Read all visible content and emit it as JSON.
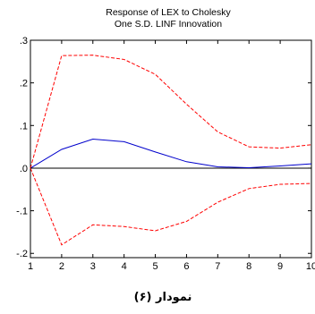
{
  "chart_data": {
    "type": "line",
    "title": "Response of LEX to Cholesky",
    "subtitle": "One S.D. LINF Innovation",
    "x": [
      1,
      2,
      3,
      4,
      5,
      6,
      7,
      8,
      9,
      10
    ],
    "x_tick_labels": [
      "1",
      "2",
      "3",
      "4",
      "5",
      "6",
      "7",
      "8",
      "9",
      "10"
    ],
    "y_tick_labels": [
      ".3",
      ".2",
      ".1",
      ".0",
      "-.1",
      "-.2"
    ],
    "y_ticks": [
      0.3,
      0.2,
      0.1,
      0.0,
      -0.1,
      -0.2
    ],
    "xlim": [
      1,
      10
    ],
    "ylim": [
      -0.21,
      0.3
    ],
    "grid": false,
    "zero_line": true,
    "series": [
      {
        "role": "response",
        "color": "#0000cc",
        "line_style": "solid",
        "values": [
          0.0,
          0.044,
          0.068,
          0.062,
          0.038,
          0.015,
          0.003,
          0.001,
          0.005,
          0.01
        ]
      },
      {
        "role": "upper-band",
        "color": "#ff0000",
        "line_style": "dashed",
        "values": [
          0.0,
          0.264,
          0.265,
          0.255,
          0.22,
          0.15,
          0.085,
          0.05,
          0.047,
          0.055
        ]
      },
      {
        "role": "lower-band",
        "color": "#ff0000",
        "line_style": "dashed",
        "values": [
          0.0,
          -0.18,
          -0.133,
          -0.137,
          -0.147,
          -0.125,
          -0.08,
          -0.048,
          -0.038,
          -0.036
        ]
      }
    ]
  },
  "caption": "نمودار (۶)"
}
